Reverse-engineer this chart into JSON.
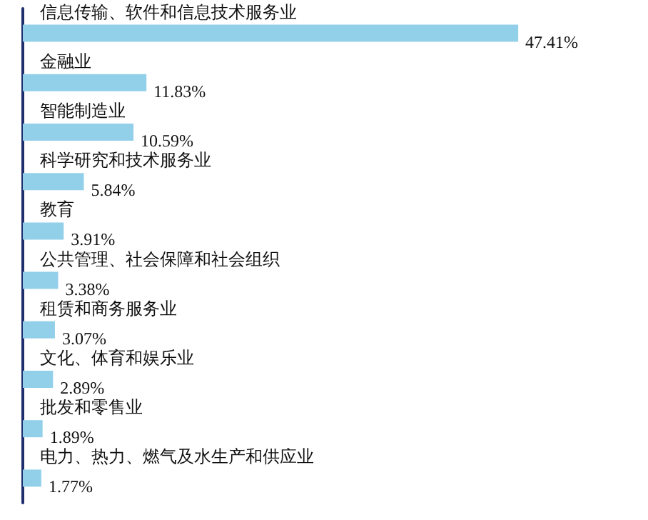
{
  "chart_data": {
    "type": "bar",
    "orientation": "horizontal",
    "categories": [
      "信息传输、软件和信息技术服务业",
      "金融业",
      "智能制造业",
      "科学研究和技术服务业",
      "教育",
      "公共管理、社会保障和社会组织",
      "租赁和商务服务业",
      "文化、体育和娱乐业",
      "批发和零售业",
      "电力、热力、燃气及水生产和供应业"
    ],
    "values": [
      47.41,
      11.83,
      10.59,
      5.84,
      3.91,
      3.38,
      3.07,
      2.89,
      1.89,
      1.77
    ],
    "value_labels": [
      "47.41%",
      "11.83%",
      "10.59%",
      "5.84%",
      "3.91%",
      "3.38%",
      "3.07%",
      "2.89%",
      "1.89%",
      "1.77%"
    ],
    "color": "#92d0ea"
  }
}
